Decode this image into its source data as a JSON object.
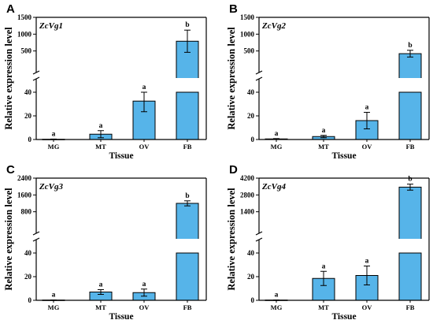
{
  "figure": {
    "bar_color": "#56b4e9",
    "axis_color": "#000000"
  },
  "chart_data": [
    {
      "panel": "A",
      "type": "bar",
      "title": "ZcVg1",
      "xlabel": "Tissue",
      "ylabel": "Relative expression level",
      "categories": [
        "MG",
        "MT",
        "OV",
        "FB"
      ],
      "values": [
        0.2,
        4.5,
        32.5,
        790
      ],
      "errors": [
        0.2,
        3,
        9,
        330
      ],
      "letters": [
        "a",
        "a",
        "a",
        "b"
      ],
      "axis_break": true,
      "lower_ylim": [
        0,
        40
      ],
      "lower_ticks": [
        0,
        20,
        40
      ],
      "upper_ylim": [
        0,
        1500
      ],
      "upper_ticks": [
        500,
        1000,
        1500
      ]
    },
    {
      "panel": "B",
      "type": "bar",
      "title": "ZcVg2",
      "xlabel": "Tissue",
      "ylabel": "Relative expression level",
      "categories": [
        "MG",
        "MT",
        "OV",
        "FB"
      ],
      "values": [
        0.5,
        2.5,
        16,
        420
      ],
      "errors": [
        0.3,
        1,
        7,
        100
      ],
      "letters": [
        "a",
        "a",
        "a",
        "b"
      ],
      "axis_break": true,
      "lower_ylim": [
        0,
        40
      ],
      "lower_ticks": [
        0,
        20,
        40
      ],
      "upper_ylim": [
        0,
        1500
      ],
      "upper_ticks": [
        500,
        1000,
        1500
      ]
    },
    {
      "panel": "C",
      "type": "bar",
      "title": "ZcVg3",
      "xlabel": "Tissue",
      "ylabel": "Relative expression level",
      "categories": [
        "MG",
        "MT",
        "OV",
        "FB"
      ],
      "values": [
        0.2,
        7,
        6.5,
        1200
      ],
      "errors": [
        0.1,
        2,
        3,
        120
      ],
      "letters": [
        "a",
        "a",
        "a",
        "b"
      ],
      "axis_break": true,
      "lower_ylim": [
        0,
        40
      ],
      "lower_ticks": [
        0,
        20,
        40
      ],
      "upper_ylim": [
        0,
        2400
      ],
      "upper_ticks": [
        800,
        1600,
        2400
      ]
    },
    {
      "panel": "D",
      "type": "bar",
      "title": "ZcVg4",
      "xlabel": "Tissue",
      "ylabel": "Relative expression level",
      "categories": [
        "MG",
        "MT",
        "OV",
        "FB"
      ],
      "values": [
        0.2,
        18.5,
        21,
        3450
      ],
      "errors": [
        0.1,
        6,
        8,
        250
      ],
      "letters": [
        "a",
        "a",
        "a",
        "b"
      ],
      "axis_break": true,
      "lower_ylim": [
        0,
        40
      ],
      "lower_ticks": [
        0,
        20,
        40
      ],
      "upper_ylim": [
        0,
        4200
      ],
      "upper_ticks": [
        1400,
        2800,
        4200
      ]
    }
  ]
}
